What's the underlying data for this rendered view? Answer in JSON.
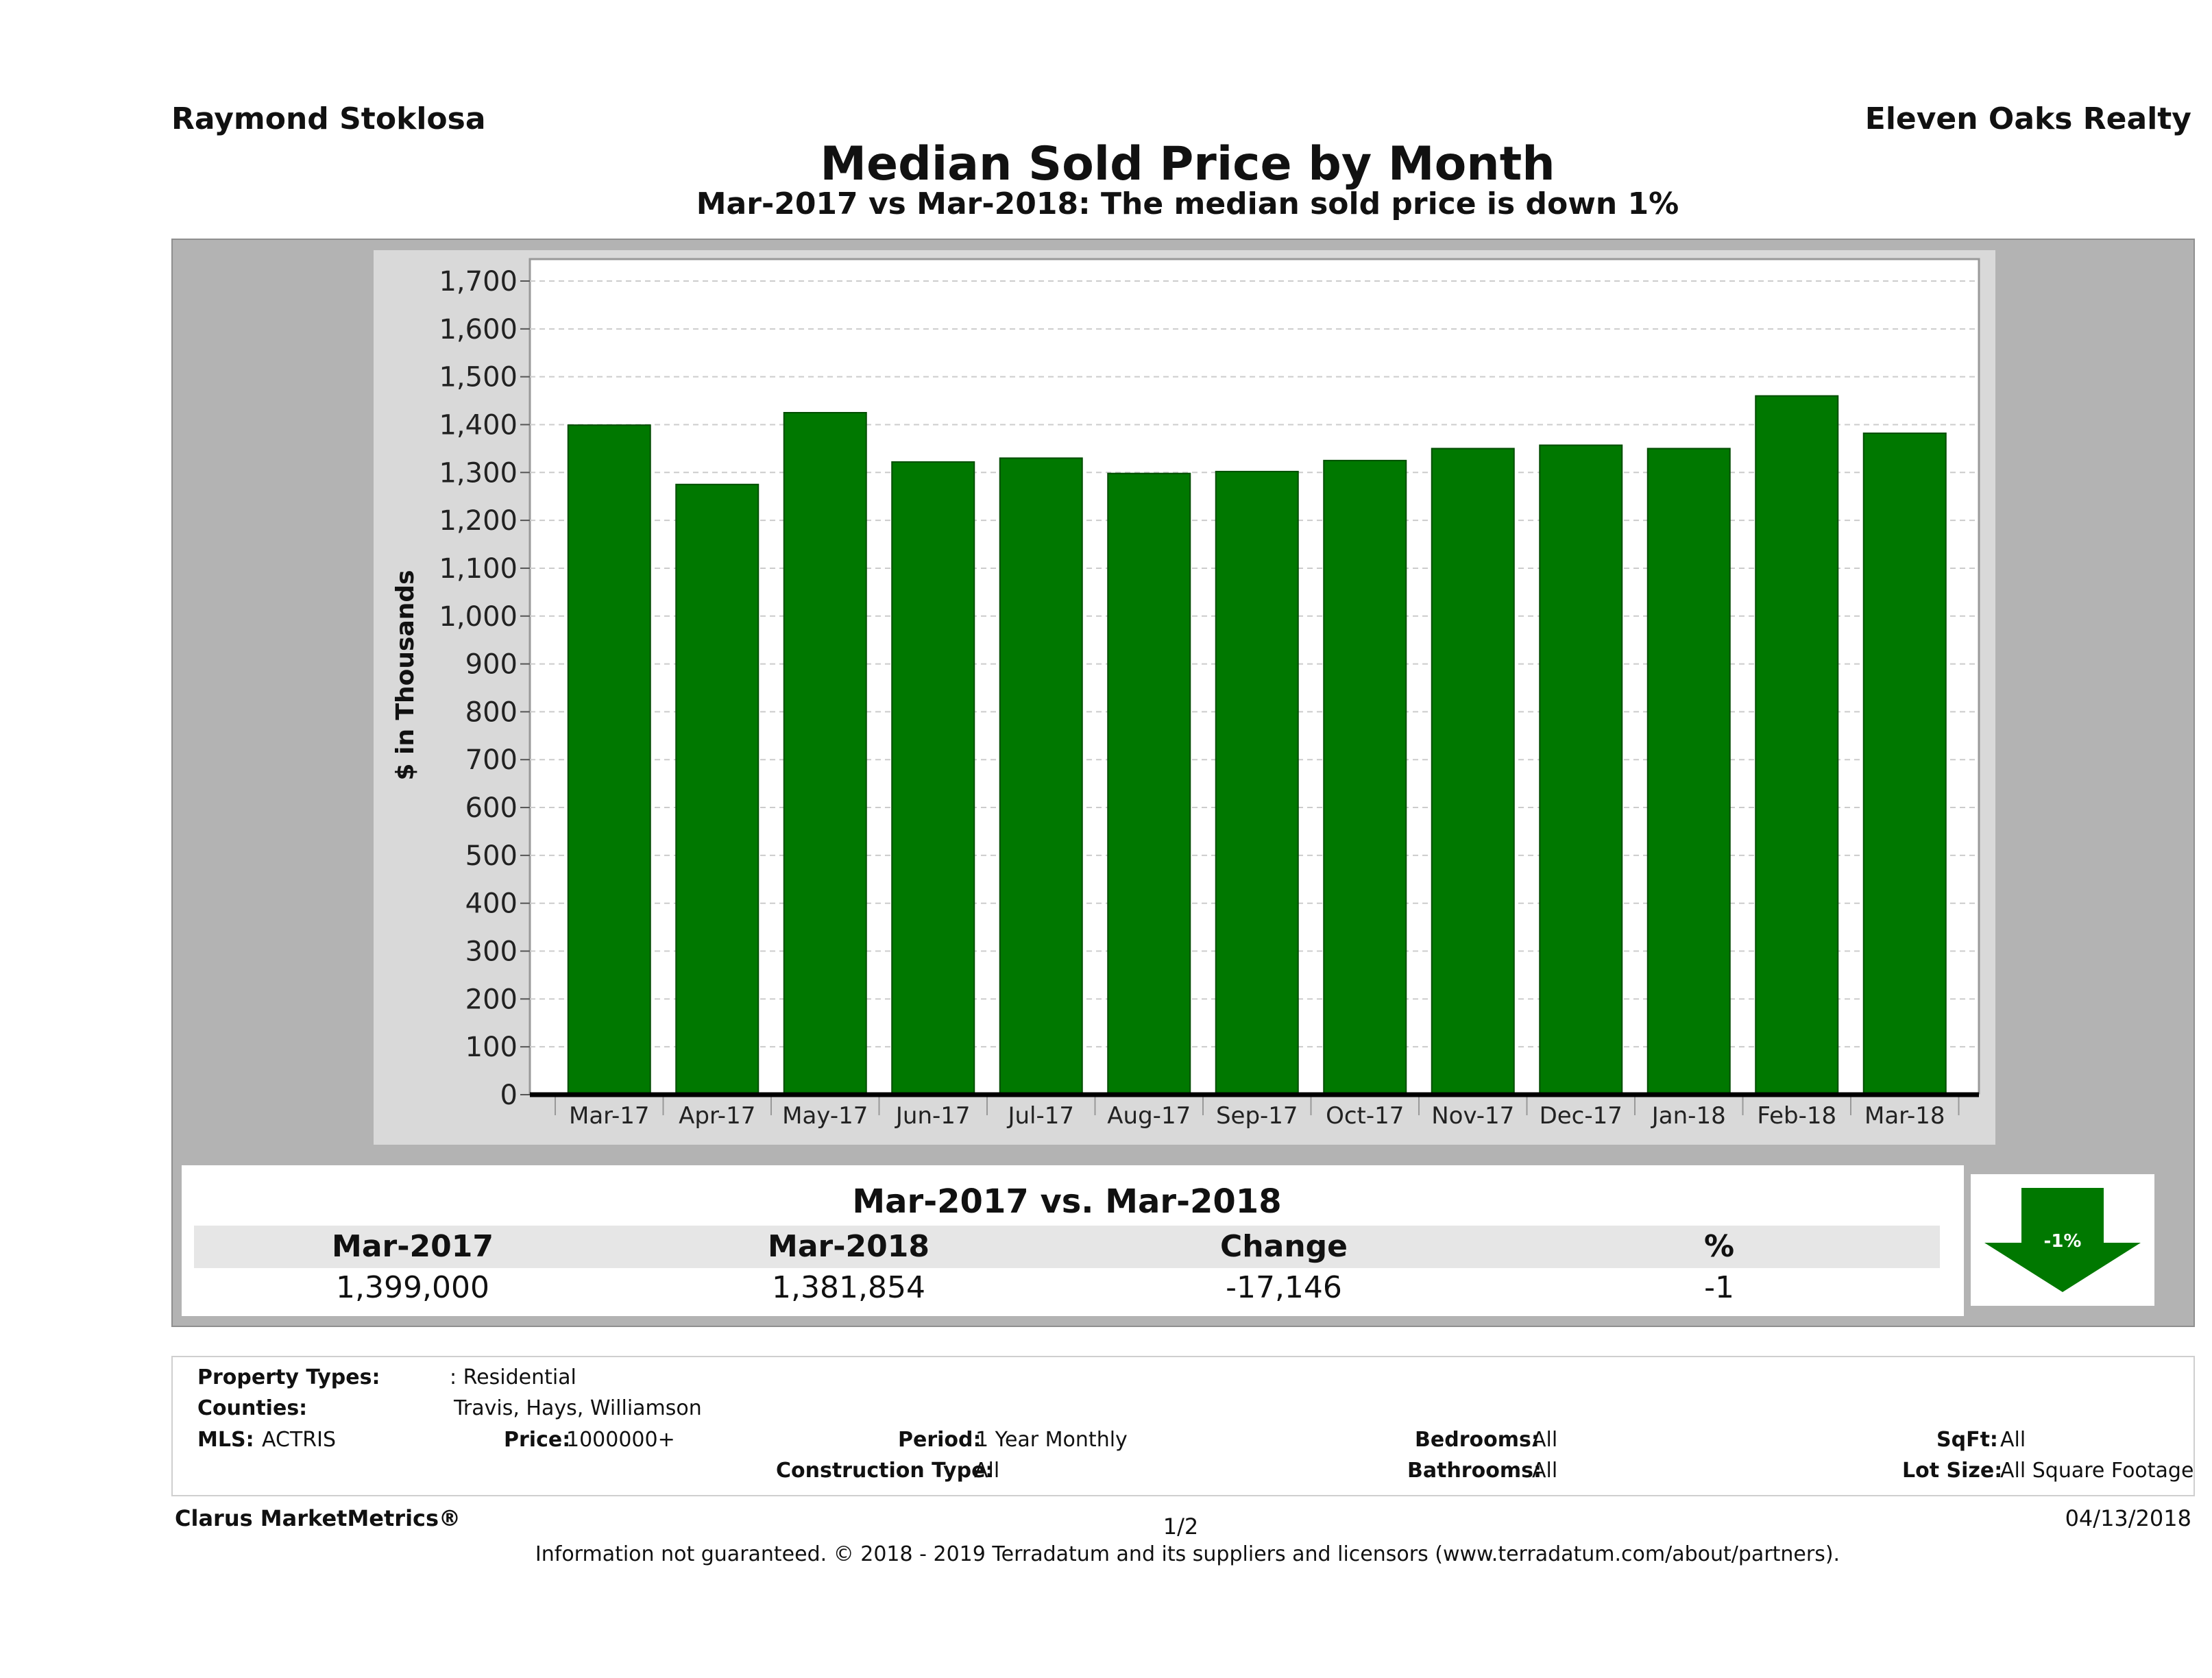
{
  "header": {
    "agent": "Raymond Stoklosa",
    "brokerage": "Eleven Oaks Realty"
  },
  "chart_data": {
    "type": "bar",
    "title": "Median Sold Price by Month",
    "subtitle": "Mar-2017 vs Mar-2018: The median sold price is down 1%",
    "ylabel": "$ in Thousands",
    "xlabel": "",
    "ylim": [
      0,
      1750
    ],
    "yticks": [
      0,
      100,
      200,
      300,
      400,
      500,
      600,
      700,
      800,
      900,
      1000,
      1100,
      1200,
      1300,
      1400,
      1500,
      1600,
      1700
    ],
    "ytick_labels": [
      "0",
      "100",
      "200",
      "300",
      "400",
      "500",
      "600",
      "700",
      "800",
      "900",
      "1,000",
      "1,100",
      "1,200",
      "1,300",
      "1,400",
      "1,500",
      "1,600",
      "1,700"
    ],
    "categories": [
      "Mar-17",
      "Apr-17",
      "May-17",
      "Jun-17",
      "Jul-17",
      "Aug-17",
      "Sep-17",
      "Oct-17",
      "Nov-17",
      "Dec-17",
      "Jan-18",
      "Feb-18",
      "Mar-18"
    ],
    "values": [
      1399,
      1275,
      1425,
      1322,
      1330,
      1298,
      1302,
      1325,
      1350,
      1357,
      1350,
      1460,
      1382
    ],
    "grid": true,
    "bar_color": "#007800"
  },
  "summary": {
    "title": "Mar-2017 vs. Mar-2018",
    "headers": [
      "Mar-2017",
      "Mar-2018",
      "Change",
      "%"
    ],
    "values": [
      "1,399,000",
      "1,381,854",
      "-17,146",
      "-1"
    ],
    "arrow_label": "-1%",
    "arrow_color": "#007800"
  },
  "criteria": {
    "property_types_label": "Property Types:",
    "property_types_value": ": Residential",
    "counties_label": "Counties:",
    "counties_value": "Travis, Hays, Williamson",
    "mls_label": "MLS:",
    "mls_value": "ACTRIS",
    "price_label": "Price:",
    "price_value": "1000000+",
    "period_label": "Period:",
    "period_value": "1 Year Monthly",
    "construction_label": "Construction Type:",
    "construction_value": "All",
    "bedrooms_label": "Bedrooms:",
    "bedrooms_value": "All",
    "bathrooms_label": "Bathrooms:",
    "bathrooms_value": "All",
    "sqft_label": "SqFt:",
    "sqft_value": "All",
    "lotsize_label": "Lot Size:",
    "lotsize_value": "All Square Footage"
  },
  "footer": {
    "brand": "Clarus MarketMetrics®",
    "page": "1/2",
    "date": "04/13/2018",
    "disclaimer": "Information not guaranteed. © 2018 - 2019 Terradatum and its suppliers and licensors (www.terradatum.com/about/partners)."
  }
}
